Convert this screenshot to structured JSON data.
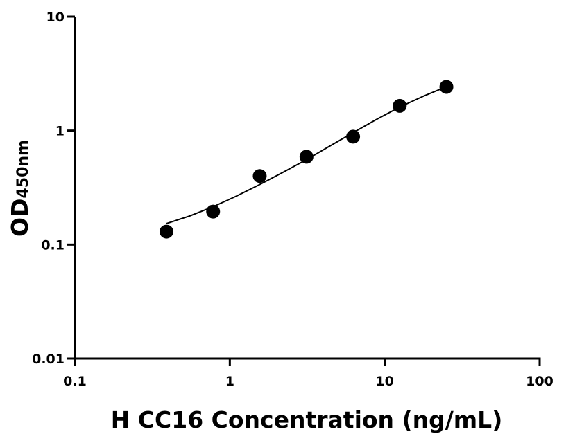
{
  "chart_data": {
    "type": "scatter",
    "x_scale": "log",
    "y_scale": "log",
    "xlim": [
      0.1,
      100
    ],
    "ylim": [
      0.01,
      10
    ],
    "x_ticks": [
      0.1,
      1,
      10,
      100
    ],
    "x_tick_labels": [
      "0.1",
      "1",
      "10",
      "100"
    ],
    "y_ticks": [
      0.01,
      0.1,
      1,
      10
    ],
    "y_tick_labels": [
      "0.01",
      "0.1",
      "1",
      "10"
    ],
    "xlabel": "H CC16 Concentration (ng/mL)",
    "ylabel_main": "OD",
    "ylabel_sub": "450nm",
    "grid": false,
    "series": [
      {
        "points": [
          {
            "x": 0.39,
            "y": 0.13
          },
          {
            "x": 0.78,
            "y": 0.195
          },
          {
            "x": 1.56,
            "y": 0.4
          },
          {
            "x": 3.125,
            "y": 0.59
          },
          {
            "x": 6.25,
            "y": 0.885
          },
          {
            "x": 12.5,
            "y": 1.65
          },
          {
            "x": 25,
            "y": 2.42
          }
        ],
        "fit_curve": [
          {
            "x": 0.39,
            "y": 0.153
          },
          {
            "x": 0.55,
            "y": 0.178
          },
          {
            "x": 0.78,
            "y": 0.215
          },
          {
            "x": 1.1,
            "y": 0.266
          },
          {
            "x": 1.56,
            "y": 0.337
          },
          {
            "x": 2.2,
            "y": 0.43
          },
          {
            "x": 3.125,
            "y": 0.556
          },
          {
            "x": 4.4,
            "y": 0.73
          },
          {
            "x": 6.25,
            "y": 0.96
          },
          {
            "x": 8.8,
            "y": 1.25
          },
          {
            "x": 12.5,
            "y": 1.61
          },
          {
            "x": 17.7,
            "y": 2.0
          },
          {
            "x": 25,
            "y": 2.43
          }
        ],
        "color": "#000000"
      }
    ]
  }
}
